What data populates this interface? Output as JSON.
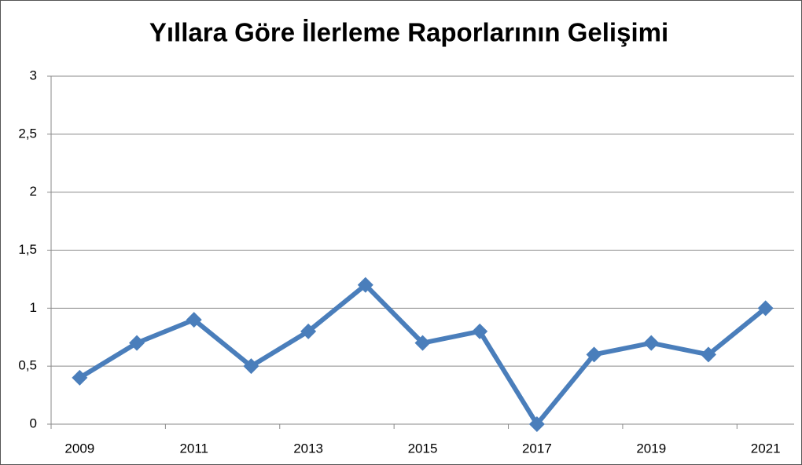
{
  "chart_data": {
    "type": "line",
    "title": "Yıllara Göre İlerleme Raporlarının Gelişimi",
    "categories": [
      "2009",
      null,
      "2011",
      null,
      "2013",
      null,
      "2015",
      null,
      "2017",
      null,
      "2019",
      null,
      "2021"
    ],
    "values": [
      0.4,
      0.7,
      0.9,
      0.5,
      0.8,
      1.2,
      0.7,
      0.8,
      0,
      0.6,
      0.7,
      0.6,
      1.0
    ],
    "color": "#4a7ebb",
    "ylim": [
      0,
      3
    ],
    "yticks": [
      0,
      {
        "value": 0.5,
        "label": "0,5"
      },
      1,
      {
        "value": 1.5,
        "label": "1,5"
      },
      2,
      {
        "value": 2.5,
        "label": "2,5"
      },
      3
    ],
    "grid": true
  }
}
